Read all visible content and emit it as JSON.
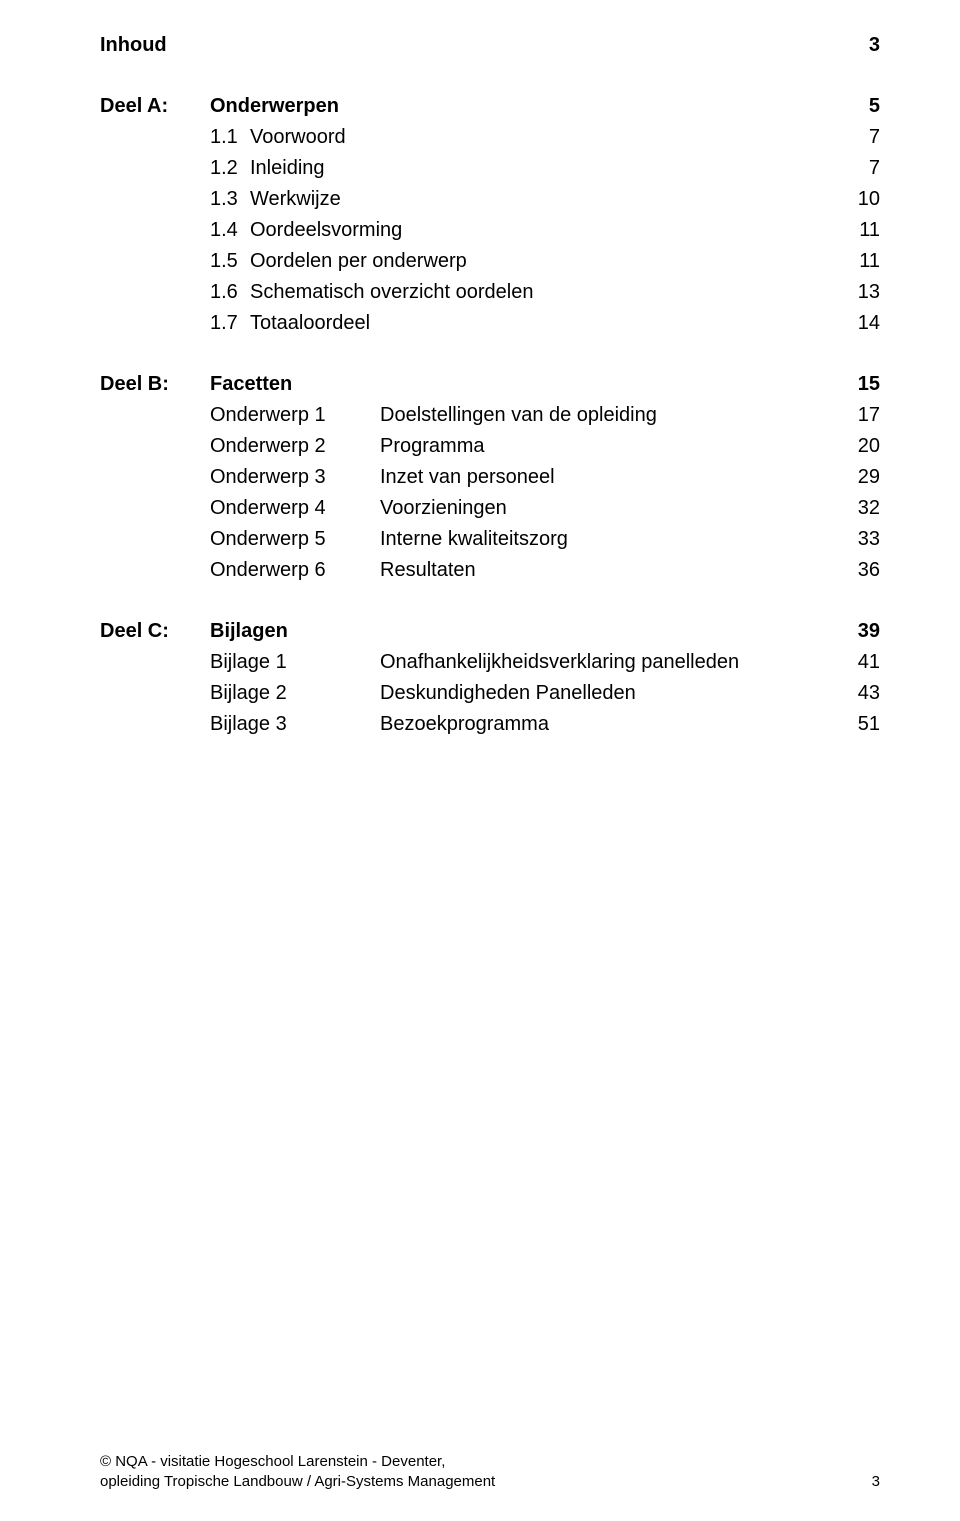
{
  "header": {
    "title": "Inhoud",
    "page": "3"
  },
  "parts": [
    {
      "label": "Deel A:",
      "title": "Onderwerpen",
      "page": "5",
      "items": [
        {
          "num": "1.1",
          "label": "Voorwoord",
          "page": "7"
        },
        {
          "num": "1.2",
          "label": "Inleiding",
          "page": "7"
        },
        {
          "num": "1.3",
          "label": "Werkwijze",
          "page": "10"
        },
        {
          "num": "1.4",
          "label": "Oordeelsvorming",
          "page": "11"
        },
        {
          "num": "1.5",
          "label": "Oordelen per onderwerp",
          "page": "11"
        },
        {
          "num": "1.6",
          "label": "Schematisch overzicht oordelen",
          "page": "13"
        },
        {
          "num": "1.7",
          "label": "Totaaloordeel",
          "page": "14"
        }
      ]
    },
    {
      "label": "Deel B:",
      "title": "Facetten",
      "page": "15",
      "items": [
        {
          "num": "Onderwerp 1",
          "label": "Doelstellingen van de opleiding",
          "page": "17"
        },
        {
          "num": "Onderwerp 2",
          "label": "Programma",
          "page": "20"
        },
        {
          "num": "Onderwerp 3",
          "label": "Inzet van personeel",
          "page": "29"
        },
        {
          "num": "Onderwerp 4",
          "label": "Voorzieningen",
          "page": "32"
        },
        {
          "num": "Onderwerp 5",
          "label": "Interne kwaliteitszorg",
          "page": "33"
        },
        {
          "num": "Onderwerp 6",
          "label": "Resultaten",
          "page": "36"
        }
      ]
    },
    {
      "label": "Deel C:",
      "title": "Bijlagen",
      "page": "39",
      "items": [
        {
          "num": "Bijlage 1",
          "label": "Onafhankelijkheidsverklaring panelleden",
          "page": "41"
        },
        {
          "num": "Bijlage 2",
          "label": "Deskundigheden Panelleden",
          "page": "43"
        },
        {
          "num": "Bijlage 3",
          "label": "Bezoekprogramma",
          "page": "51"
        }
      ]
    }
  ],
  "footer": {
    "line1": "© NQA - visitatie Hogeschool Larenstein - Deventer,",
    "line2": "opleiding Tropische Landbouw / Agri-Systems Management",
    "page": "3"
  },
  "layout": {
    "numColClass": [
      "col-num-sm",
      "col-num-lg",
      "col-num-lg"
    ]
  }
}
